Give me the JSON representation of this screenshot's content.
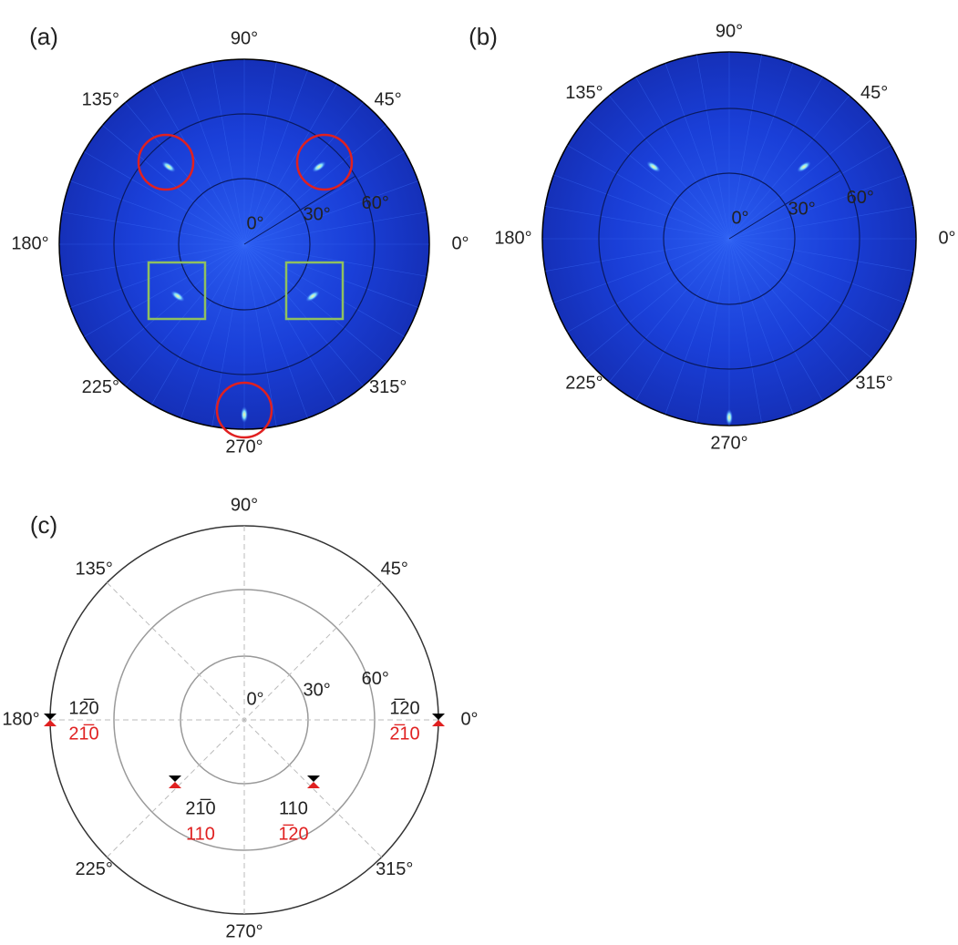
{
  "panels": [
    {
      "label": "(a)",
      "angle_labels": [
        "90°",
        "135°",
        "45°",
        "180°",
        "0°",
        "225°",
        "315°",
        "270°"
      ],
      "ring_labels": [
        "0°",
        "30°",
        "60°"
      ]
    },
    {
      "label": "(b)",
      "angle_labels": [
        "90°",
        "135°",
        "45°",
        "180°",
        "0°",
        "225°",
        "315°",
        "270°"
      ],
      "ring_labels": [
        "0°",
        "30°",
        "60°"
      ]
    },
    {
      "label": "(c)",
      "angle_labels": [
        "90°",
        "135°",
        "45°",
        "180°",
        "0°",
        "225°",
        "315°",
        "270°"
      ],
      "ring_labels": [
        "0°",
        "30°",
        "60°"
      ],
      "annotations": [
        {
          "black": "12̅0",
          "red": "21̅0"
        },
        {
          "black": "1̅20",
          "red": "2̅10"
        },
        {
          "black": "21̅0",
          "red": "110"
        },
        {
          "black": "110",
          "red": "1̅20"
        }
      ]
    }
  ]
}
